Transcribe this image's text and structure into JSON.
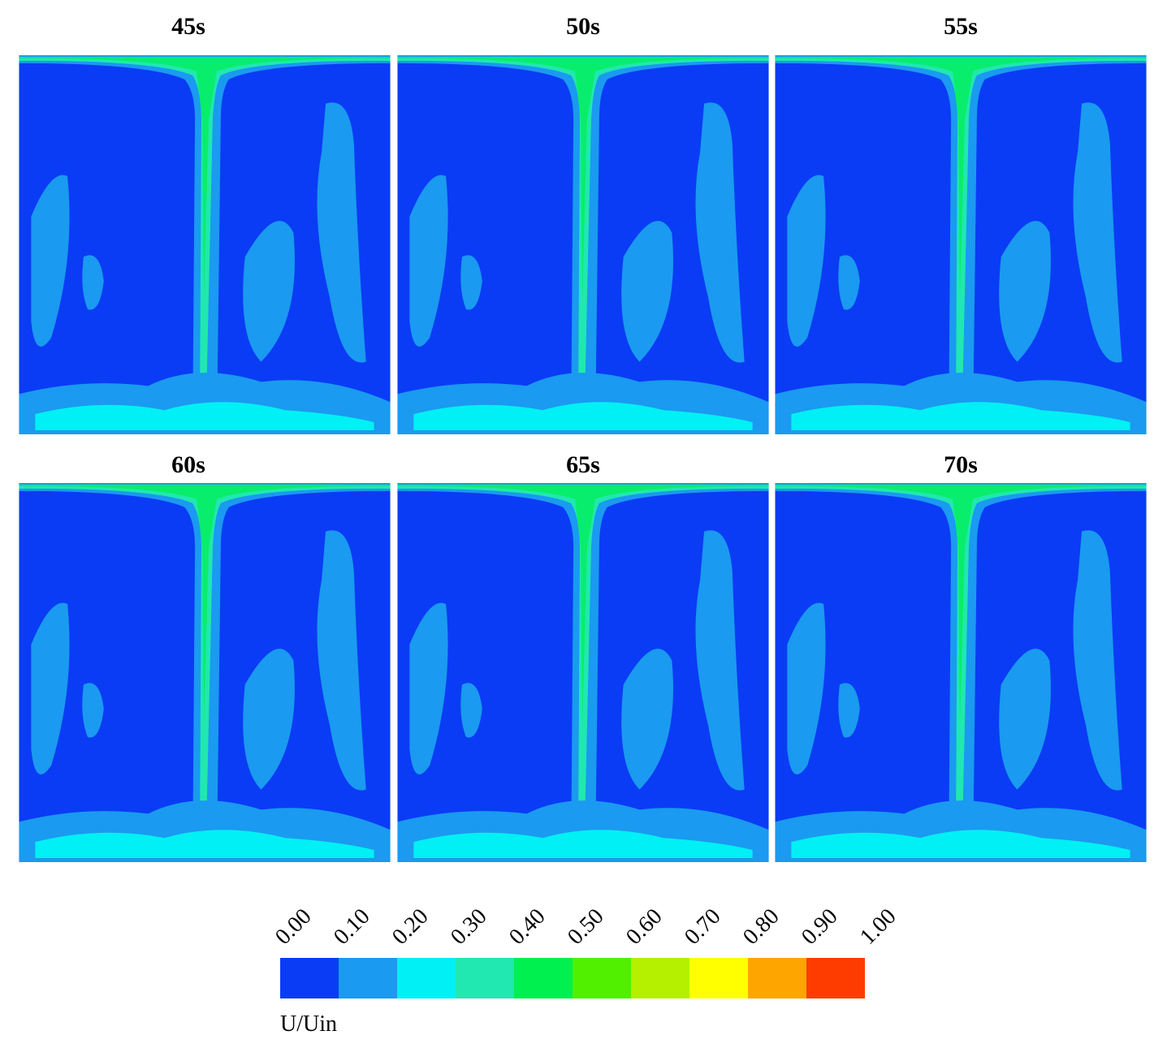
{
  "panels": [
    {
      "title": "45s"
    },
    {
      "title": "50s"
    },
    {
      "title": "55s"
    },
    {
      "title": "60s"
    },
    {
      "title": "65s"
    },
    {
      "title": "70s"
    }
  ],
  "colorbar": {
    "ticks": [
      "0.00",
      "0.10",
      "0.20",
      "0.30",
      "0.40",
      "0.50",
      "0.60",
      "0.70",
      "0.80",
      "0.90",
      "1.00"
    ],
    "colors": [
      "#0a3cf5",
      "#1a9af0",
      "#00f0f5",
      "#20e8b0",
      "#00f050",
      "#50f000",
      "#b4f000",
      "#ffff00",
      "#ffa500",
      "#ff3c00"
    ],
    "label": "U/Uin"
  }
}
